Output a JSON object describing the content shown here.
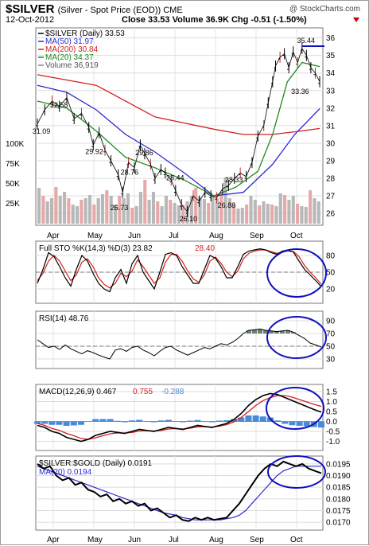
{
  "header": {
    "symbol": "$SILVER",
    "subtitle": "(Silver - Spot Price (EOD))  CME",
    "brand": "@ StockCharts.com",
    "date": "12-Oct-2012",
    "stats": "Close 33.53  Volume 36.9K  Chg -0.51 (-1.50%)",
    "change_arrow": "down-arrow-icon"
  },
  "colors": {
    "price": "#000000",
    "ma50": "#2b2bd0",
    "ma200": "#d42020",
    "ma20": "#1d8a1d",
    "volume_up": "#b8b8b8",
    "volume_down": "#e8a8a8",
    "sto_k": "#000000",
    "sto_d": "#d42020",
    "rsi_fill": "#556b55",
    "macd_line": "#000000",
    "macd_signal": "#d42020",
    "macd_hist": "#4a8ad8",
    "ratio_line": "#000000",
    "ratio_ma": "#2b2bd0",
    "annotation": "#1010c0"
  },
  "chart_data": [
    {
      "type": "line",
      "panel": "price",
      "legend": [
        "$SILVER (Daily) 33.53",
        "MA(50) 31.97",
        "MA(200) 30.84",
        "MA(20) 34.37",
        "Volume 36,919"
      ],
      "x_ticks": [
        "Apr",
        "May",
        "Jun",
        "Jul",
        "Aug",
        "Sep",
        "Oct"
      ],
      "y_ticks": [
        26,
        27,
        28,
        29,
        30,
        31,
        32,
        33,
        34,
        35,
        36
      ],
      "ylim": [
        25.6,
        36.3
      ],
      "volume_ticks": [
        "25K",
        "50K",
        "75K",
        "100K"
      ],
      "series": [
        {
          "name": "$SILVER",
          "x": [
            0,
            5,
            10,
            15,
            20,
            25,
            30,
            35,
            38,
            42,
            46,
            50,
            55,
            58,
            62,
            66,
            70,
            73,
            77,
            80,
            84,
            87,
            91,
            94,
            98,
            102,
            106,
            110,
            114,
            118,
            122,
            126,
            130,
            134,
            138,
            142,
            146,
            150,
            154,
            157,
            160,
            162,
            165,
            168,
            171,
            174,
            177,
            180,
            183,
            186,
            189,
            192
          ],
          "y": [
            31.1,
            31.9,
            32.4,
            32.1,
            32.6,
            31.4,
            31.7,
            30.9,
            29.9,
            30.6,
            29.6,
            29.0,
            28.2,
            27.2,
            28.9,
            28.6,
            29.9,
            29.4,
            28.8,
            28.0,
            28.5,
            28.3,
            27.9,
            27.3,
            26.5,
            26.1,
            27.0,
            26.7,
            27.2,
            27.0,
            26.9,
            27.4,
            27.6,
            28.0,
            28.3,
            28.1,
            28.9,
            30.4,
            31.0,
            32.3,
            33.5,
            34.4,
            34.9,
            35.1,
            34.3,
            35.2,
            34.6,
            35.4,
            35.0,
            34.3,
            34.0,
            33.5
          ]
        },
        {
          "name": "MA(50)",
          "x": [
            0,
            20,
            40,
            60,
            80,
            100,
            120,
            140,
            160,
            175,
            192
          ],
          "y": [
            33.3,
            32.9,
            31.9,
            30.5,
            29.5,
            28.3,
            27.0,
            27.2,
            28.8,
            30.5,
            31.97
          ]
        },
        {
          "name": "MA(200)",
          "x": [
            0,
            40,
            80,
            120,
            140,
            160,
            180,
            192
          ],
          "y": [
            33.9,
            33.3,
            31.5,
            30.8,
            30.5,
            30.5,
            30.7,
            30.84
          ]
        },
        {
          "name": "MA(20)",
          "x": [
            0,
            20,
            40,
            60,
            80,
            100,
            120,
            135,
            150,
            160,
            170,
            180,
            192
          ],
          "y": [
            32.4,
            32.0,
            30.7,
            29.2,
            28.6,
            27.9,
            27.0,
            27.5,
            28.4,
            30.5,
            33.5,
            34.6,
            34.37
          ]
        }
      ],
      "volume": [
        4.5,
        3.5,
        2.8,
        3.2,
        4.6,
        3.5,
        4,
        3.2,
        2.4,
        2.2,
        3,
        3.2,
        3.6,
        2.4,
        3.2,
        3.7,
        4.2,
        3.5,
        2.4,
        3.5,
        3.2,
        3.8,
        2,
        2.2,
        4,
        5.5,
        3,
        4,
        2.8,
        2.2,
        3.5,
        3,
        2.6,
        2.3,
        2.4,
        2.8,
        3.5,
        4.5,
        3.3,
        3.1,
        2.6,
        3.5,
        3.2,
        4,
        5.8,
        3.2,
        2.4,
        1.9,
        2,
        2.4,
        3.5,
        3,
        2.3,
        2.8,
        2.5,
        2.4,
        2.2,
        3.8,
        3.6,
        3,
        3.5,
        2.5,
        2.2,
        2.1,
        4.2,
        3.2,
        2.8
      ],
      "annotations": [
        {
          "label": "35.44",
          "x": 182,
          "y": 35.44
        },
        {
          "label": "33.36",
          "x": 178,
          "y": 33.36
        },
        {
          "label": "32.58",
          "x": 14,
          "y": 32.58
        },
        {
          "label": "31.09",
          "x": 2,
          "y": 31.09
        },
        {
          "label": "29.92",
          "x": 38,
          "y": 29.92
        },
        {
          "label": "29.86",
          "x": 72,
          "y": 29.86
        },
        {
          "label": "28.76",
          "x": 62,
          "y": 28.76
        },
        {
          "label": "28.44",
          "x": 93,
          "y": 28.44
        },
        {
          "label": "28.33",
          "x": 133,
          "y": 28.33
        },
        {
          "label": "26.88",
          "x": 128,
          "y": 26.88
        },
        {
          "label": "26.73",
          "x": 55,
          "y": 26.73
        },
        {
          "label": "26.10",
          "x": 102,
          "y": 26.1
        }
      ]
    },
    {
      "type": "line",
      "panel": "stochastic",
      "legend": [
        "Full STO %K(14,3) %D(3) 23.82",
        "28.40"
      ],
      "y_ticks": [
        20,
        50,
        80
      ],
      "ylim": [
        0,
        100
      ],
      "series": [
        {
          "name": "%K",
          "y": [
            30,
            55,
            85,
            78,
            60,
            40,
            25,
            55,
            80,
            70,
            48,
            30,
            20,
            15,
            40,
            55,
            30,
            65,
            80,
            50,
            35,
            20,
            50,
            82,
            85,
            80,
            60,
            45,
            30,
            30,
            55,
            80,
            75,
            60,
            40,
            40,
            60,
            82,
            88,
            90,
            92,
            90,
            85,
            82,
            88,
            90,
            86,
            70,
            55,
            45,
            35,
            24
          ]
        },
        {
          "name": "%D",
          "y": [
            35,
            48,
            70,
            80,
            70,
            52,
            35,
            45,
            68,
            74,
            60,
            40,
            28,
            22,
            30,
            48,
            42,
            52,
            72,
            60,
            45,
            30,
            40,
            68,
            82,
            82,
            70,
            52,
            38,
            32,
            45,
            70,
            77,
            66,
            50,
            42,
            52,
            74,
            84,
            88,
            90,
            90,
            87,
            84,
            86,
            88,
            87,
            78,
            62,
            50,
            40,
            28.4
          ]
        }
      ]
    },
    {
      "type": "area",
      "panel": "rsi",
      "legend": [
        "RSI(14) 48.76"
      ],
      "y_ticks": [
        30,
        50,
        70,
        90
      ],
      "ylim": [
        20,
        100
      ],
      "series": [
        {
          "name": "RSI(14)",
          "y": [
            60,
            54,
            48,
            50,
            45,
            52,
            46,
            42,
            38,
            43,
            40,
            36,
            33,
            30,
            44,
            46,
            42,
            48,
            50,
            44,
            40,
            35,
            42,
            48,
            50,
            44,
            40,
            36,
            40,
            44,
            48,
            46,
            50,
            54,
            52,
            56,
            62,
            70,
            75,
            76,
            77,
            75,
            74,
            73,
            74,
            75,
            72,
            67,
            62,
            55,
            52,
            48.76
          ]
        }
      ]
    },
    {
      "type": "line",
      "panel": "macd",
      "legend": [
        "MACD(12,26,9) 0.467",
        "0.755",
        "-0.288"
      ],
      "y_ticks": [
        -1.0,
        -0.5,
        0.0,
        0.5,
        1.0,
        1.5
      ],
      "ylim": [
        -1.3,
        1.7
      ],
      "series": [
        {
          "name": "MACD",
          "y": [
            -0.2,
            -0.3,
            -0.5,
            -0.6,
            -0.8,
            -0.9,
            -1.0,
            -0.9,
            -0.7,
            -0.6,
            -0.5,
            -0.55,
            -0.6,
            -0.5,
            -0.4,
            -0.45,
            -0.5,
            -0.4,
            -0.3,
            -0.35,
            -0.4,
            -0.3,
            -0.2,
            -0.25,
            -0.3,
            -0.2,
            -0.1,
            0.1,
            0.4,
            0.8,
            1.1,
            1.3,
            1.4,
            1.35,
            1.2,
            1.05,
            0.9,
            0.75,
            0.6,
            0.467
          ]
        },
        {
          "name": "Signal",
          "y": [
            -0.1,
            -0.2,
            -0.35,
            -0.45,
            -0.6,
            -0.72,
            -0.85,
            -0.9,
            -0.82,
            -0.72,
            -0.62,
            -0.58,
            -0.58,
            -0.55,
            -0.48,
            -0.46,
            -0.48,
            -0.45,
            -0.38,
            -0.36,
            -0.38,
            -0.34,
            -0.27,
            -0.26,
            -0.28,
            -0.24,
            -0.16,
            -0.02,
            0.2,
            0.5,
            0.8,
            1.05,
            1.2,
            1.3,
            1.3,
            1.22,
            1.1,
            0.98,
            0.86,
            0.755
          ]
        },
        {
          "name": "Histogram",
          "y": [
            -0.1,
            -0.1,
            -0.15,
            -0.15,
            -0.2,
            -0.18,
            -0.15,
            0.0,
            0.12,
            0.12,
            0.12,
            0.03,
            -0.02,
            0.05,
            0.08,
            0.01,
            -0.02,
            0.05,
            0.08,
            0.01,
            -0.02,
            0.04,
            0.07,
            0.01,
            -0.02,
            0.04,
            0.06,
            0.12,
            0.2,
            0.3,
            0.3,
            0.25,
            0.2,
            0.05,
            -0.1,
            -0.17,
            -0.2,
            -0.23,
            -0.26,
            -0.288
          ]
        }
      ]
    },
    {
      "type": "line",
      "panel": "ratio",
      "legend": [
        "$SILVER:$GOLD (Daily) 0.0191",
        "MA(20) 0.0194"
      ],
      "y_ticks": [
        0.017,
        0.0175,
        0.018,
        0.0185,
        0.019,
        0.0195
      ],
      "ylim": [
        0.0168,
        0.0197
      ],
      "series": [
        {
          "name": "$SILVER:$GOLD",
          "y": [
            0.0195,
            0.0193,
            0.0194,
            0.019,
            0.0188,
            0.0189,
            0.0186,
            0.0187,
            0.0184,
            0.0183,
            0.0181,
            0.0182,
            0.0179,
            0.018,
            0.0178,
            0.0179,
            0.0177,
            0.0178,
            0.0175,
            0.0176,
            0.0174,
            0.0172,
            0.0173,
            0.0171,
            0.01705,
            0.0172,
            0.0171,
            0.0172,
            0.0171,
            0.01715,
            0.0172,
            0.0175,
            0.0178,
            0.0182,
            0.0186,
            0.019,
            0.0193,
            0.0195,
            0.0194,
            0.0196,
            0.0195,
            0.0194,
            0.0195,
            0.0193,
            0.0192,
            0.0191
          ]
        },
        {
          "name": "MA(20)",
          "y": [
            0.0194,
            0.0193,
            0.0192,
            0.0191,
            0.019,
            0.0189,
            0.0188,
            0.0187,
            0.0186,
            0.0185,
            0.0184,
            0.0183,
            0.0182,
            0.0181,
            0.018,
            0.0179,
            0.0178,
            0.0177,
            0.0176,
            0.0175,
            0.0174,
            0.01735,
            0.0173,
            0.0172,
            0.01715,
            0.0171,
            0.0171,
            0.0171,
            0.0171,
            0.0171,
            0.01715,
            0.0172,
            0.0173,
            0.0175,
            0.0178,
            0.0181,
            0.0184,
            0.0187,
            0.019,
            0.0192,
            0.0193,
            0.0194,
            0.0194,
            0.0194,
            0.0194,
            0.0194
          ]
        }
      ]
    }
  ]
}
